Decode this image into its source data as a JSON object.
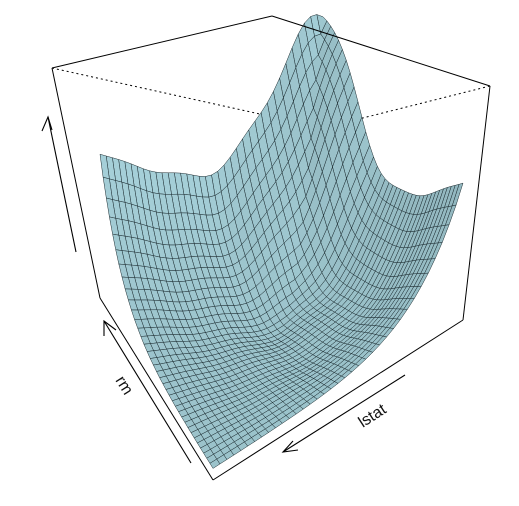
{
  "chart_data": {
    "type": "surface-3d",
    "x_label": "lstat",
    "y_label": "rm",
    "z_label": "",
    "surface_color": "#a9d4dd",
    "mesh_color": "#1b2b30",
    "grid": {
      "x_steps": 36,
      "y_steps": 36
    },
    "z_range": [
      0,
      1
    ]
  }
}
